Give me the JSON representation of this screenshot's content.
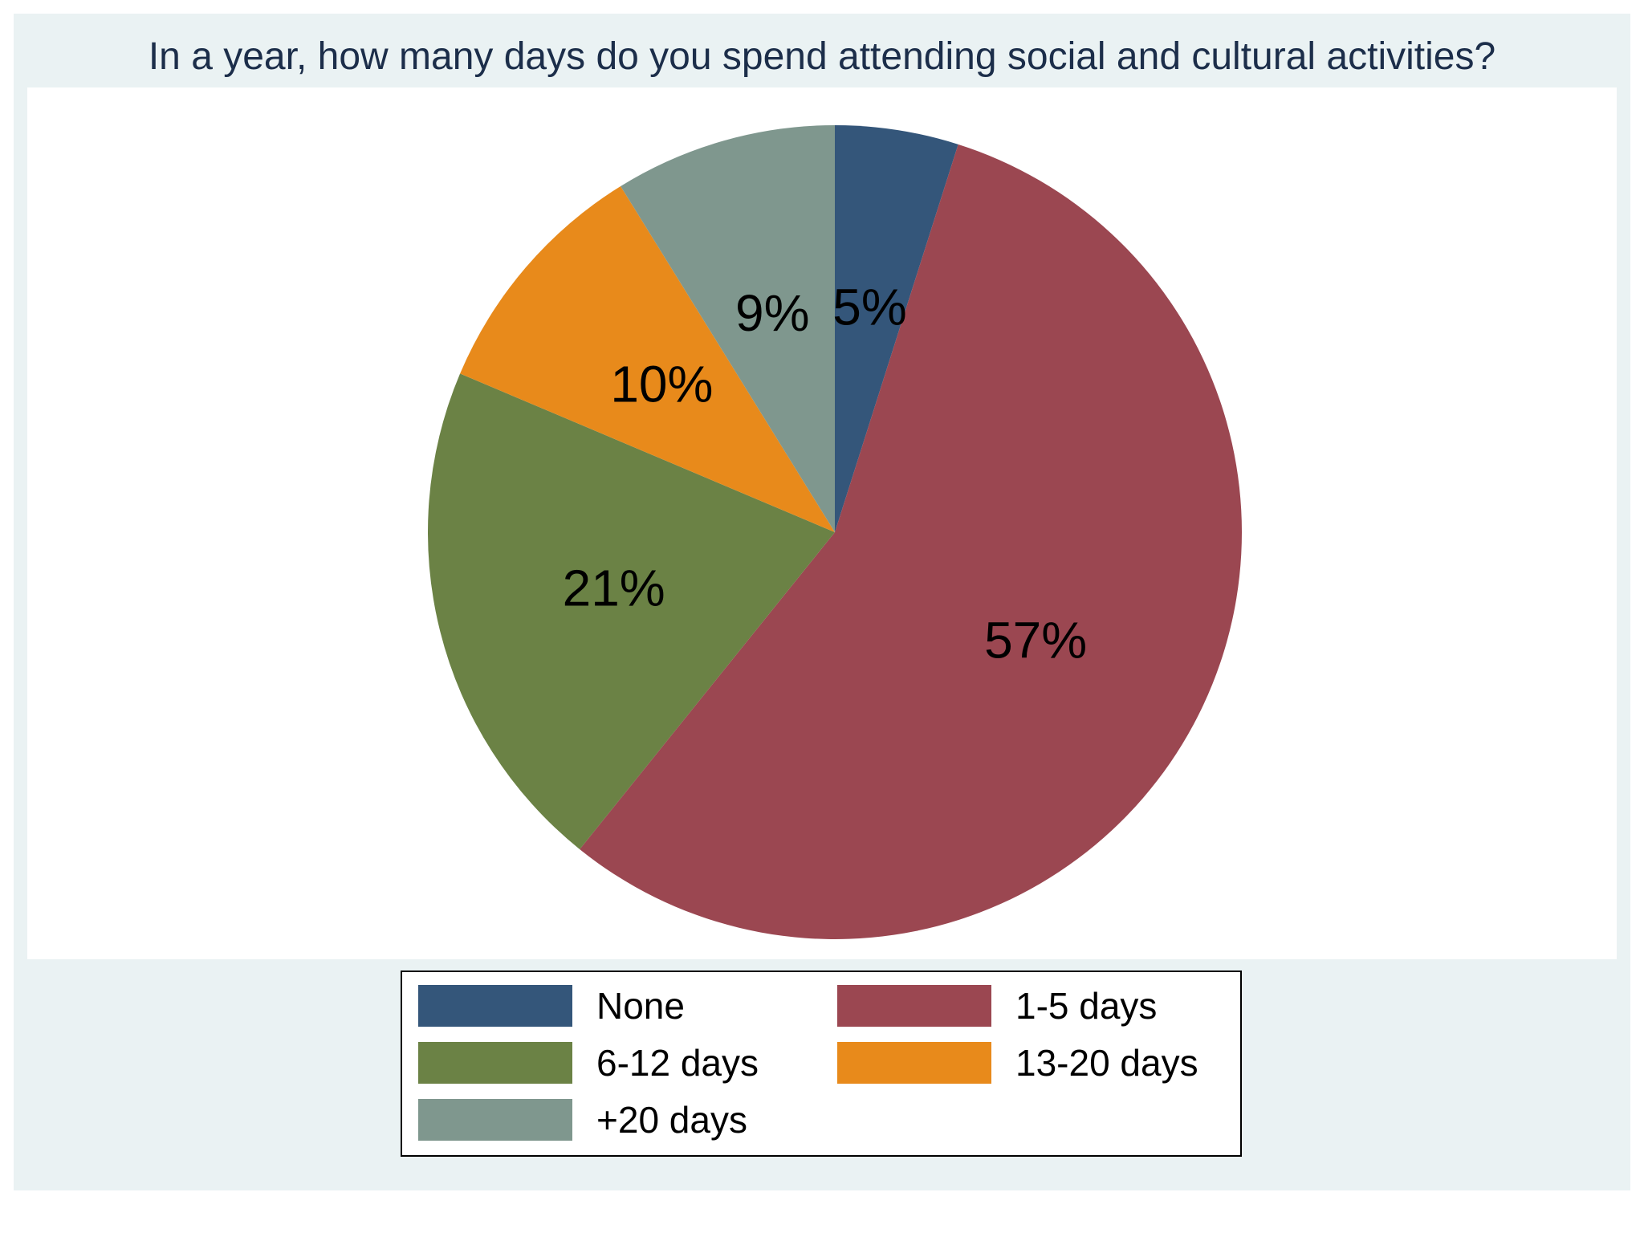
{
  "chart_data": {
    "type": "pie",
    "title": "In a year, how many days do you spend attending social and cultural activities?",
    "slices": [
      {
        "label": "None",
        "value": 5,
        "display": "5%",
        "color": "#34567a"
      },
      {
        "label": "1-5 days",
        "value": 57,
        "display": "57%",
        "color": "#9b4751"
      },
      {
        "label": "6-12 days",
        "value": 21,
        "display": "21%",
        "color": "#6b8245"
      },
      {
        "label": "13-20 days",
        "value": 10,
        "display": "10%",
        "color": "#e88a1b"
      },
      {
        "label": "+20 days",
        "value": 9,
        "display": "9%",
        "color": "#7f978e"
      }
    ],
    "start_angle_deg": 0,
    "direction": "clockwise",
    "legend": {
      "placement": "bottom",
      "columns": 2,
      "order": [
        "None",
        "1-5 days",
        "6-12 days",
        "13-20 days",
        "+20 days"
      ]
    }
  },
  "colors": {
    "background": "#eaf2f3",
    "plot_background": "#ffffff",
    "title_color": "#1c2e4a"
  }
}
